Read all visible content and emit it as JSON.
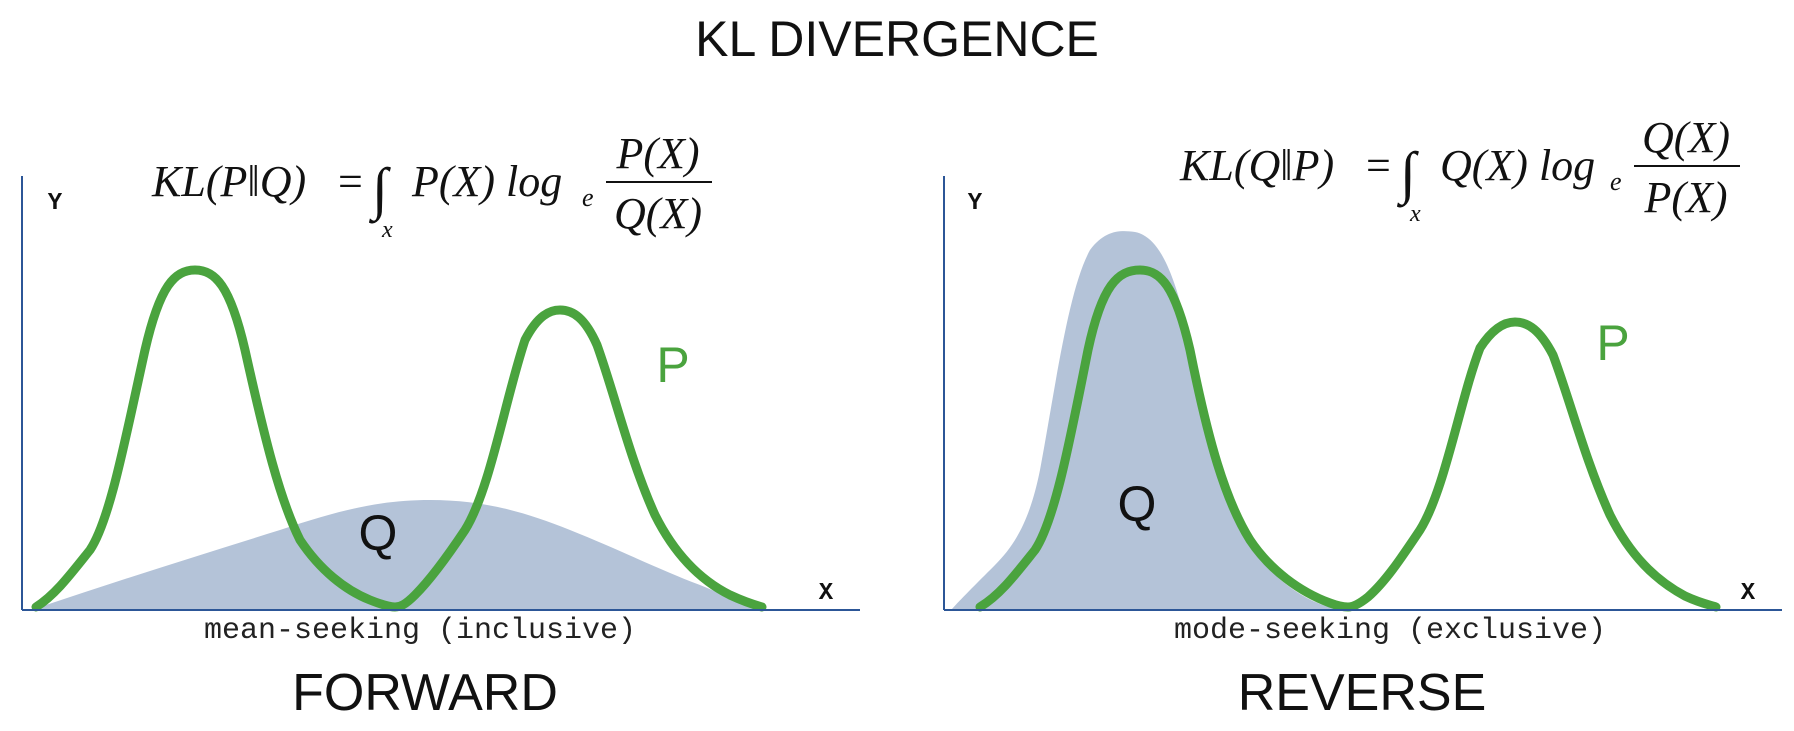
{
  "title": "KL DIVERGENCE",
  "colors": {
    "p_curve": "#4aa33e",
    "q_fill": "#b4c3d8",
    "axis": "#2c5697",
    "text": "#111111"
  },
  "panels": [
    {
      "id": "forward",
      "name": "FORWARD",
      "caption": "mean-seeking (inclusive)",
      "formula": {
        "lhs": "KL(P‖Q)",
        "integral": "∫",
        "subscript": "x",
        "integrand": "P(X) log",
        "log_base": "e",
        "numerator": "P(X)",
        "denominator": "Q(X)"
      },
      "y_axis_label": "Y",
      "x_axis_label": "X",
      "p_label": "P",
      "q_label": "Q"
    },
    {
      "id": "reverse",
      "name": "REVERSE",
      "caption": "mode-seeking (exclusive)",
      "formula": {
        "lhs": "KL(Q‖P)",
        "integral": "∫",
        "subscript": "x",
        "integrand": "Q(X) log",
        "log_base": "e",
        "numerator": "Q(X)",
        "denominator": "P(X)"
      },
      "y_axis_label": "Y",
      "x_axis_label": "X",
      "p_label": "P",
      "q_label": "Q"
    }
  ]
}
